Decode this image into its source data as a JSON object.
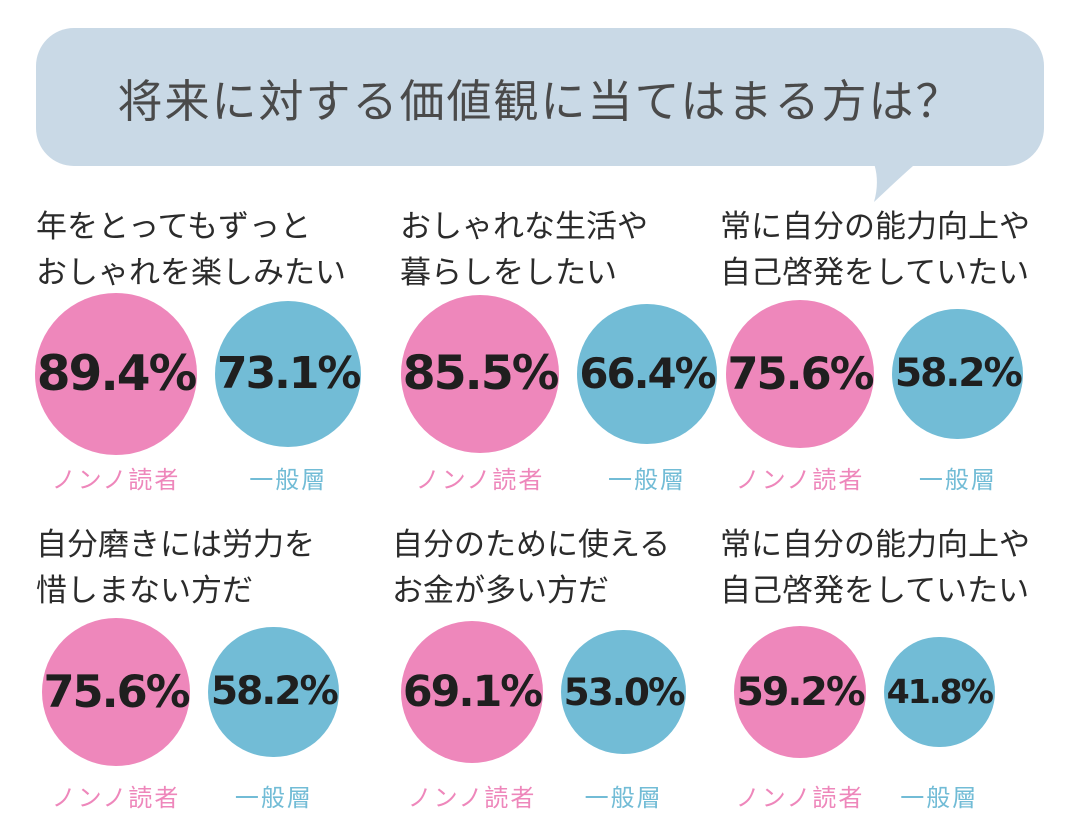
{
  "title": "将来に対する価値観に当てはまる方は？",
  "colors": {
    "nonno": "#ee87bb",
    "general": "#72bcd6",
    "bubble": "#c9d9e6"
  },
  "chart_data": {
    "type": "bubble-comparison",
    "title": "将来に対する価値観に当てはまる方は？",
    "unit": "%",
    "series_names": [
      "ノンノ読者",
      "一般層"
    ],
    "items": [
      {
        "question_lines": [
          "年をとってもずっと",
          "おしゃれを楽しみたい"
        ],
        "nonno": 89.4,
        "nonno_label": "89.4%",
        "general": 73.1,
        "general_label": "73.1%",
        "nonno_series": "ノンノ読者",
        "general_series": "一般層"
      },
      {
        "question_lines": [
          "おしゃれな生活や",
          "暮らしをしたい"
        ],
        "nonno": 85.5,
        "nonno_label": "85.5%",
        "general": 66.4,
        "general_label": "66.4%",
        "nonno_series": "ノンノ読者",
        "general_series": "一般層"
      },
      {
        "question_lines": [
          "常に自分の能力向上や",
          "自己啓発をしていたい"
        ],
        "nonno": 75.6,
        "nonno_label": "75.6%",
        "general": 58.2,
        "general_label": "58.2%",
        "nonno_series": "ノンノ読者",
        "general_series": "一般層"
      },
      {
        "question_lines": [
          "自分磨きには労力を",
          "惜しまない方だ"
        ],
        "nonno": 75.6,
        "nonno_label": "75.6%",
        "general": 58.2,
        "general_label": "58.2%",
        "nonno_series": "ノンノ読者",
        "general_series": "一般層"
      },
      {
        "question_lines": [
          "自分のために使える",
          "お金が多い方だ"
        ],
        "nonno": 69.1,
        "nonno_label": "69.1%",
        "general": 53.0,
        "general_label": "53.0%",
        "nonno_series": "ノンノ読者",
        "general_series": "一般層"
      },
      {
        "question_lines": [
          "常に自分の能力向上や",
          "自己啓発をしていたい"
        ],
        "nonno": 59.2,
        "nonno_label": "59.2%",
        "general": 41.8,
        "general_label": "41.8%",
        "nonno_series": "ノンノ読者",
        "general_series": "一般層"
      }
    ]
  }
}
